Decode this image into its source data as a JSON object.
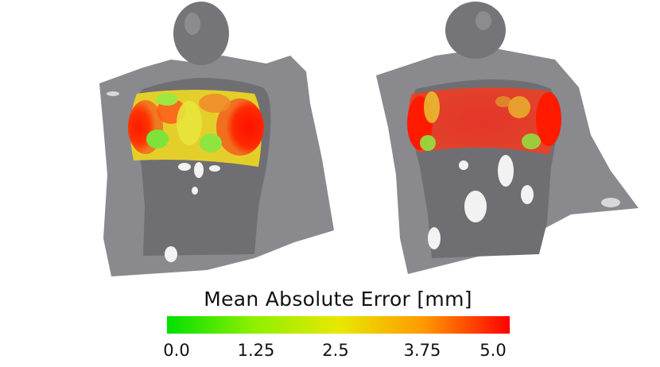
{
  "figure": {
    "panels": [
      {
        "name": "left-torso-render"
      },
      {
        "name": "right-torso-render"
      }
    ]
  },
  "legend": {
    "title": "Mean Absolute Error [mm]",
    "ticks": [
      "0.0",
      "1.25",
      "2.5",
      "3.75",
      "5.0"
    ],
    "colors": [
      "#00e000",
      "#8cf000",
      "#e8e800",
      "#ff9900",
      "#ff0000"
    ]
  }
}
